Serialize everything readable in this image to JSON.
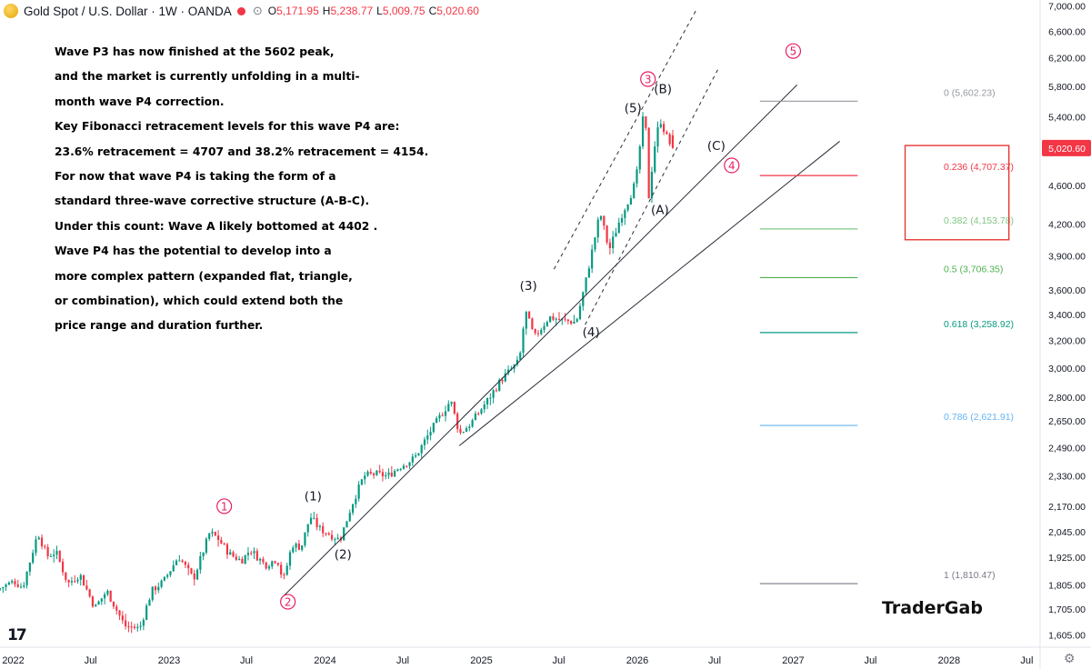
{
  "header": {
    "title": "Gold Spot / U.S. Dollar · 1W · OANDA",
    "open_label": "O",
    "open": "5,171.95",
    "high_label": "H",
    "high": "5,238.77",
    "low_label": "L",
    "low": "5,009.75",
    "close_label": "C",
    "close": "5,020.60"
  },
  "annotation_lines": [
    "Wave P3 has now finished at the 5602 peak,",
    "and the market is currently unfolding in a multi-",
    "month wave P4 correction.",
    "Key Fibonacci retracement levels for this wave P4 are:",
    "23.6% retracement = 4707 and   38.2% retracement = 4154.",
    "For now that wave P4 is taking the form of a",
    "standard three-wave corrective structure (A-B-C).",
    "Under this count: Wave A likely bottomed at 4402  .",
    "Wave P4 has the potential to develop into a",
    "more complex pattern (expanded flat, triangle,",
    "or combination), which could extend both the",
    "price range and duration further."
  ],
  "brand": "TraderGab",
  "tv_logo": "17",
  "colors": {
    "up": "#089981",
    "down": "#f23645",
    "wave_primary": "#e91e63",
    "price_tag": "#f23645",
    "highlight_box": "#e53935"
  },
  "chart_data": {
    "type": "candlestick",
    "title": "Gold Spot / U.S. Dollar · 1W · OANDA",
    "timeframe": "1W",
    "last_price": 5020.6,
    "y_scale": "log",
    "ylim": [
      1560,
      7100
    ],
    "xlim": [
      "2021-12-01",
      "2028-08-01"
    ],
    "y_ticks": [
      1605,
      1705,
      1805,
      1925,
      2045,
      2170,
      2330,
      2490,
      2650,
      2800,
      3000,
      3200,
      3400,
      3600,
      3900,
      4200,
      4600,
      5020.6,
      5400,
      5800,
      6200,
      6600,
      7000
    ],
    "y_tick_labels": [
      "1,605.00",
      "1,705.00",
      "1,805.00",
      "1,925.00",
      "2,045.00",
      "2,170.00",
      "2,330.00",
      "2,490.00",
      "2,650.00",
      "2,800.00",
      "3,000.00",
      "3,200.00",
      "3,400.00",
      "3,600.00",
      "3,900.00",
      "4,200.00",
      "4,600.00",
      "5,020.60",
      "5,400.00",
      "5,800.00",
      "6,200.00",
      "6,600.00",
      "7,000.00"
    ],
    "x_ticks": [
      {
        "date": "2022-01-01",
        "label": "2022"
      },
      {
        "date": "2022-07-01",
        "label": "Jul"
      },
      {
        "date": "2023-01-01",
        "label": "2023"
      },
      {
        "date": "2023-07-01",
        "label": "Jul"
      },
      {
        "date": "2024-01-01",
        "label": "2024"
      },
      {
        "date": "2024-07-01",
        "label": "Jul"
      },
      {
        "date": "2025-01-01",
        "label": "2025"
      },
      {
        "date": "2025-07-01",
        "label": "Jul"
      },
      {
        "date": "2026-01-01",
        "label": "2026"
      },
      {
        "date": "2026-07-01",
        "label": "Jul"
      },
      {
        "date": "2027-01-01",
        "label": "2027"
      },
      {
        "date": "2027-07-01",
        "label": "Jul"
      },
      {
        "date": "2028-01-01",
        "label": "2028"
      },
      {
        "date": "2028-07-01",
        "label": "Jul"
      }
    ],
    "price_path": [
      [
        "2021-12-01",
        1785
      ],
      [
        "2022-01-10",
        1820
      ],
      [
        "2022-01-30",
        1795
      ],
      [
        "2022-03-07",
        2040
      ],
      [
        "2022-03-28",
        1930
      ],
      [
        "2022-04-18",
        1950
      ],
      [
        "2022-05-16",
        1810
      ],
      [
        "2022-06-13",
        1850
      ],
      [
        "2022-07-18",
        1710
      ],
      [
        "2022-08-15",
        1780
      ],
      [
        "2022-09-26",
        1640
      ],
      [
        "2022-10-31",
        1630
      ],
      [
        "2022-11-28",
        1780
      ],
      [
        "2022-12-26",
        1820
      ],
      [
        "2023-01-30",
        1930
      ],
      [
        "2023-03-06",
        1830
      ],
      [
        "2023-04-13",
        2040
      ],
      [
        "2023-05-01",
        2015
      ],
      [
        "2023-05-29",
        1940
      ],
      [
        "2023-06-26",
        1910
      ],
      [
        "2023-07-17",
        1960
      ],
      [
        "2023-08-21",
        1890
      ],
      [
        "2023-09-18",
        1920
      ],
      [
        "2023-10-02",
        1820
      ],
      [
        "2023-10-23",
        1985
      ],
      [
        "2023-11-13",
        1970
      ],
      [
        "2023-12-04",
        2120
      ],
      [
        "2023-12-25",
        2060
      ],
      [
        "2024-02-12",
        2005
      ],
      [
        "2024-03-11",
        2180
      ],
      [
        "2024-04-08",
        2330
      ],
      [
        "2024-05-06",
        2340
      ],
      [
        "2024-06-03",
        2330
      ],
      [
        "2024-07-01",
        2380
      ],
      [
        "2024-08-05",
        2430
      ],
      [
        "2024-09-09",
        2580
      ],
      [
        "2024-10-28",
        2780
      ],
      [
        "2024-11-18",
        2570
      ],
      [
        "2024-12-16",
        2640
      ],
      [
        "2025-01-27",
        2800
      ],
      [
        "2025-02-24",
        2920
      ],
      [
        "2025-04-07",
        3050
      ],
      [
        "2025-04-21",
        3430
      ],
      [
        "2025-05-12",
        3220
      ],
      [
        "2025-06-16",
        3380
      ],
      [
        "2025-07-21",
        3350
      ],
      [
        "2025-08-18",
        3340
      ],
      [
        "2025-09-08",
        3650
      ],
      [
        "2025-10-13",
        4320
      ],
      [
        "2025-11-03",
        3950
      ],
      [
        "2025-12-01",
        4280
      ],
      [
        "2025-12-22",
        4480
      ],
      [
        "2026-01-05",
        4650
      ],
      [
        "2026-01-26",
        5602
      ],
      [
        "2026-02-02",
        4402
      ],
      [
        "2026-02-16",
        5000
      ],
      [
        "2026-03-02",
        5380
      ],
      [
        "2026-03-16",
        5171.95
      ],
      [
        "2026-03-30",
        5020.6
      ]
    ],
    "wave_labels": [
      {
        "label": "1",
        "degree": "primary",
        "date": "2023-05-10",
        "price": 2170
      },
      {
        "label": "2",
        "degree": "primary",
        "date": "2023-10-06",
        "price": 1735
      },
      {
        "label": "3",
        "degree": "primary",
        "date": "2026-01-26",
        "price": 5900
      },
      {
        "label": "4",
        "degree": "primary",
        "date": "2026-08-10",
        "price": 4820
      },
      {
        "label": "5",
        "degree": "primary",
        "date": "2027-01-01",
        "price": 6300
      },
      {
        "label": "(1)",
        "degree": "intermediate",
        "date": "2023-12-04",
        "price": 2200
      },
      {
        "label": "(2)",
        "degree": "intermediate",
        "date": "2024-02-12",
        "price": 1920
      },
      {
        "label": "(3)",
        "degree": "intermediate",
        "date": "2025-04-21",
        "price": 3600
      },
      {
        "label": "(4)",
        "degree": "intermediate",
        "date": "2025-09-15",
        "price": 3230
      },
      {
        "label": "(5)",
        "degree": "intermediate",
        "date": "2025-12-22",
        "price": 5460
      },
      {
        "label": "(A)",
        "degree": "intermediate",
        "date": "2026-02-23",
        "price": 4300
      },
      {
        "label": "(B)",
        "degree": "intermediate",
        "date": "2026-03-02",
        "price": 5710
      },
      {
        "label": "(C)",
        "degree": "intermediate",
        "date": "2026-07-05",
        "price": 5000
      }
    ],
    "fib_levels": [
      {
        "ratio": "0",
        "label": "0 (5,602.23)",
        "price": 5602.23,
        "color": "#9598a1"
      },
      {
        "ratio": "0.236",
        "label": "0.236 (4,707.37)",
        "price": 4707.37,
        "color": "#f23645"
      },
      {
        "ratio": "0.382",
        "label": "0.382 (4,153.78)",
        "price": 4153.78,
        "color": "#81c784"
      },
      {
        "ratio": "0.5",
        "label": "0.5 (3,706.35)",
        "price": 3706.35,
        "color": "#4caf50"
      },
      {
        "ratio": "0.618",
        "label": "0.618 (3,258.92)",
        "price": 3258.92,
        "color": "#089981"
      },
      {
        "ratio": "0.786",
        "label": "0.786 (2,621.91)",
        "price": 2621.91,
        "color": "#64b5f6"
      },
      {
        "ratio": "1",
        "label": "1 (1,810.47)",
        "price": 1810.47,
        "color": "#787b86"
      }
    ],
    "fib_range": [
      "2026-10-15",
      "2027-06-01"
    ],
    "highlight_box": {
      "date_start": "2027-09-20",
      "date_end": "2028-05-20",
      "price_top": 5050,
      "price_bottom": 4050
    },
    "trendlines": [
      {
        "style": "solid",
        "points": [
          [
            "2023-09-20",
            1748
          ],
          [
            "2027-01-10",
            5820
          ]
        ]
      },
      {
        "style": "solid",
        "points": [
          [
            "2024-11-10",
            2500
          ],
          [
            "2027-04-20",
            5100
          ]
        ]
      },
      {
        "style": "dashed",
        "points": [
          [
            "2025-06-20",
            3780
          ],
          [
            "2026-05-20",
            6950
          ]
        ]
      },
      {
        "style": "dashed",
        "points": [
          [
            "2025-09-01",
            3320
          ],
          [
            "2026-07-10",
            6050
          ]
        ]
      }
    ]
  }
}
